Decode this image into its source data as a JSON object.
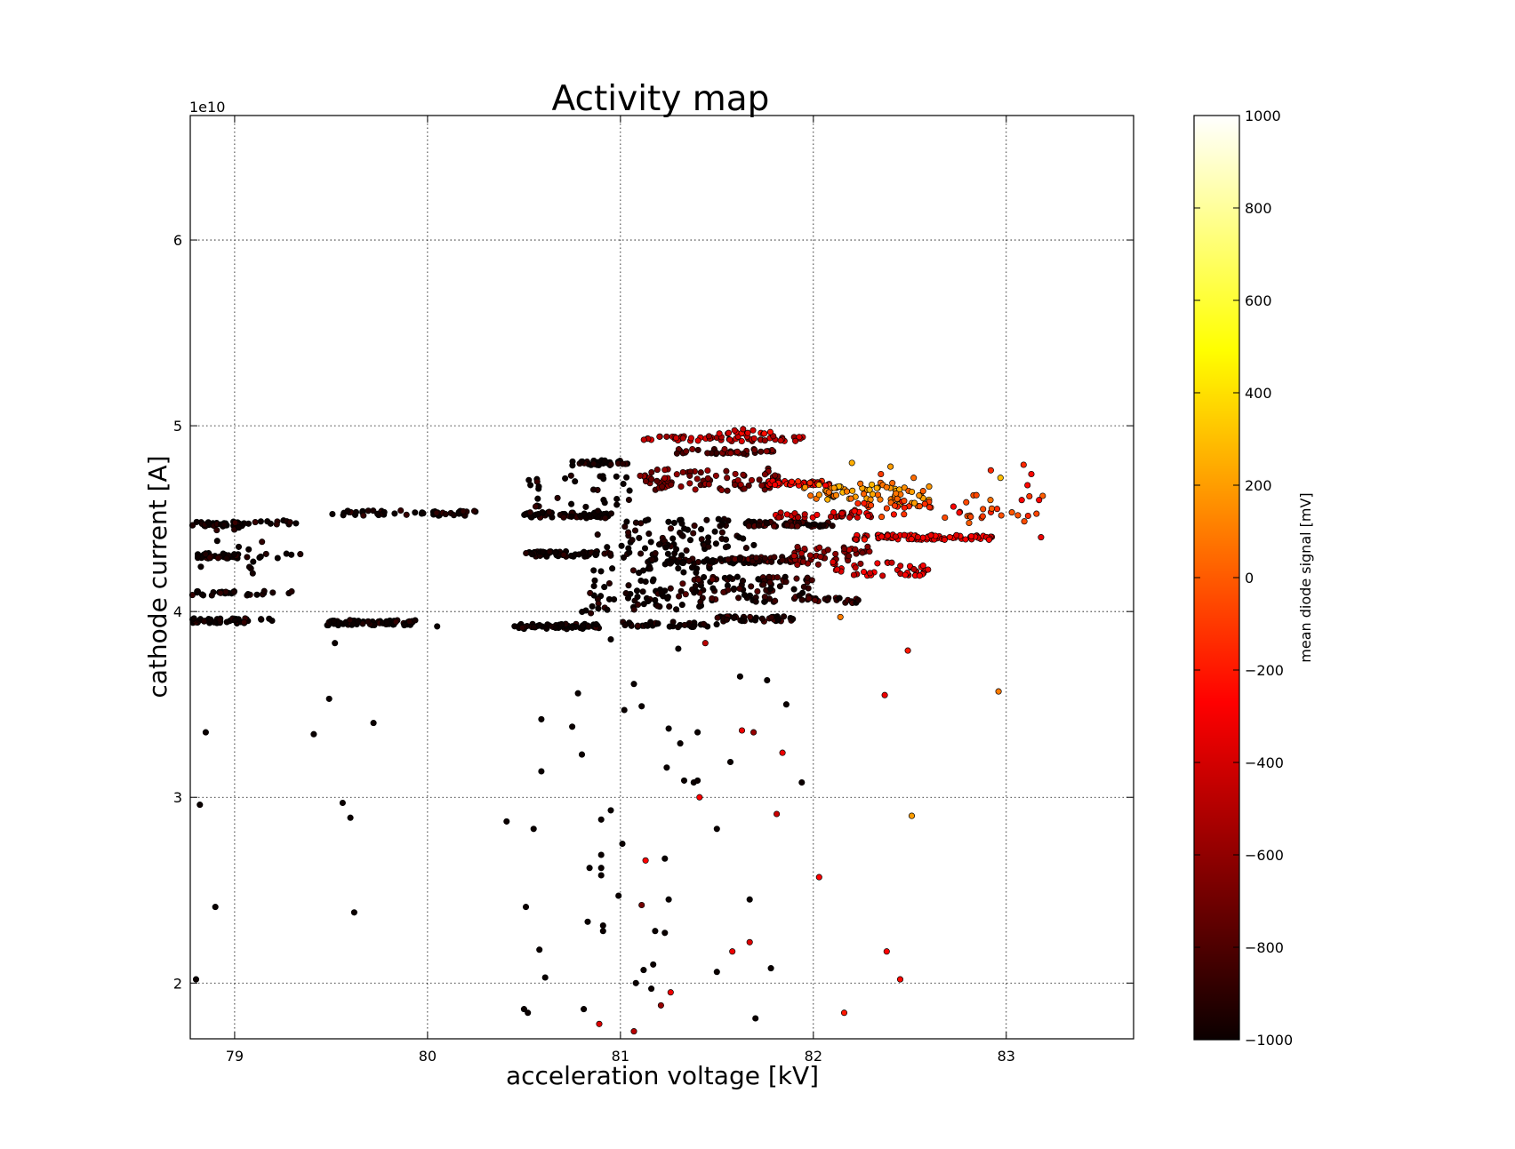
{
  "chart_data": {
    "type": "scatter",
    "title": "Activity map",
    "xlabel": "acceleration voltage [kV]",
    "ylabel": "cathode current [A]",
    "y_offset_text": "1e10",
    "xlim": [
      78.77,
      83.66
    ],
    "ylim": [
      17000000000.0,
      66700000000.0
    ],
    "xticks": [
      79,
      80,
      81,
      82,
      83
    ],
    "xtick_labels": [
      "79",
      "80",
      "81",
      "82",
      "83"
    ],
    "yticks": [
      20000000000.0,
      30000000000.0,
      40000000000.0,
      50000000000.0,
      60000000000.0
    ],
    "ytick_labels": [
      "2",
      "3",
      "4",
      "5",
      "6"
    ],
    "grid": true,
    "colorbar": {
      "label": "mean diode signal [mV]",
      "colormap": "hot",
      "range": [
        -1000,
        1000
      ],
      "ticks": [
        -1000,
        -800,
        -600,
        -400,
        -200,
        0,
        200,
        400,
        600,
        800,
        1000
      ],
      "tick_labels": [
        "−1000",
        "−800",
        "−600",
        "−400",
        "−200",
        "0",
        "200",
        "400",
        "600",
        "800",
        "1000"
      ]
    },
    "clusters": [
      {
        "x": [
          78.78,
          79.05
        ],
        "y": 44700000000.0,
        "n": 40,
        "c": -1000
      },
      {
        "x": [
          79.07,
          79.38
        ],
        "y": 44800000000.0,
        "n": 12,
        "c": -1000
      },
      {
        "x": [
          78.78,
          79.02
        ],
        "y": 43000000000.0,
        "n": 32,
        "c": -1000
      },
      {
        "x": [
          79.05,
          79.4
        ],
        "y": 43000000000.0,
        "n": 8,
        "c": -1000
      },
      {
        "x": [
          78.78,
          79.0
        ],
        "y": 41000000000.0,
        "n": 20,
        "c": -1000
      },
      {
        "x": [
          79.05,
          79.3
        ],
        "y": 41000000000.0,
        "n": 10,
        "c": -1000
      },
      {
        "x": [
          78.78,
          79.08
        ],
        "y": 39500000000.0,
        "n": 40,
        "c": -1000
      },
      {
        "x": [
          79.1,
          79.2
        ],
        "y": 39600000000.0,
        "n": 4,
        "c": -1000
      },
      {
        "x": [
          78.8,
          79.15
        ],
        "y": 43500000000.0,
        "n": 16,
        "c": -1000,
        "spread": 3000000000.0
      },
      {
        "x": [
          79.5,
          80.25
        ],
        "y": 45300000000.0,
        "n": 50,
        "c": -1000
      },
      {
        "x": [
          79.48,
          79.95
        ],
        "y": 39400000000.0,
        "n": 70,
        "c": -1000
      },
      {
        "x": [
          80.45,
          80.9
        ],
        "y": 39200000000.0,
        "n": 60,
        "c": -1000
      },
      {
        "x": [
          80.5,
          80.95
        ],
        "y": 45200000000.0,
        "n": 60,
        "c": -1000
      },
      {
        "x": [
          80.5,
          80.95
        ],
        "y": 43100000000.0,
        "n": 55,
        "c": -1000
      },
      {
        "x": [
          80.75,
          81.05
        ],
        "y": 48000000000.0,
        "n": 35,
        "c": -1000
      },
      {
        "x": [
          80.5,
          81.05
        ],
        "y": 46200000000.0,
        "n": 40,
        "c": -1000,
        "spread": 2400000000.0
      },
      {
        "x": [
          80.85,
          81.5
        ],
        "y": 42200000000.0,
        "n": 80,
        "c": -1000,
        "spread": 4000000000.0
      },
      {
        "x": [
          80.8,
          81.3
        ],
        "y": 40500000000.0,
        "n": 30,
        "c": -1000,
        "spread": 1400000000.0
      },
      {
        "x": [
          81.0,
          81.5
        ],
        "y": 39300000000.0,
        "n": 35,
        "c": -1000
      },
      {
        "x": [
          81.0,
          81.7
        ],
        "y": 44200000000.0,
        "n": 60,
        "c": -1000,
        "spread": 1600000000.0
      },
      {
        "x": [
          81.5,
          81.9
        ],
        "y": 39600000000.0,
        "n": 40,
        "c": -950
      },
      {
        "x": [
          81.1,
          81.7
        ],
        "y": 42700000000.0,
        "n": 60,
        "c": -980
      },
      {
        "x": [
          81.3,
          82.0
        ],
        "y": 41200000000.0,
        "n": 90,
        "c": -900,
        "spread": 1400000000.0
      },
      {
        "x": [
          81.55,
          82.0
        ],
        "y": 42800000000.0,
        "n": 50,
        "c": -850
      },
      {
        "x": [
          81.65,
          82.1
        ],
        "y": 44700000000.0,
        "n": 60,
        "c": -880
      },
      {
        "x": [
          81.1,
          81.85
        ],
        "y": 47100000000.0,
        "n": 80,
        "c": -700,
        "spread": 1200000000.0
      },
      {
        "x": [
          81.25,
          81.8
        ],
        "y": 48600000000.0,
        "n": 35,
        "c": -750
      },
      {
        "x": [
          81.1,
          81.95
        ],
        "y": 49300000000.0,
        "n": 55,
        "c": -500
      },
      {
        "x": [
          81.5,
          81.8
        ],
        "y": 49700000000.0,
        "n": 14,
        "c": -350
      },
      {
        "x": [
          81.75,
          82.1
        ],
        "y": 46900000000.0,
        "n": 45,
        "c": -250
      },
      {
        "x": [
          81.8,
          82.3
        ],
        "y": 45200000000.0,
        "n": 35,
        "c": -450
      },
      {
        "x": [
          81.95,
          82.45
        ],
        "y": 46500000000.0,
        "n": 55,
        "c": 150,
        "spread": 1000000000.0
      },
      {
        "x": [
          82.4,
          82.6
        ],
        "y": 46200000000.0,
        "n": 20,
        "c": 100,
        "spread": 1200000000.0
      },
      {
        "x": [
          81.9,
          82.3
        ],
        "y": 43000000000.0,
        "n": 45,
        "c": -600,
        "spread": 1000000000.0
      },
      {
        "x": [
          82.2,
          82.95
        ],
        "y": 44000000000.0,
        "n": 80,
        "c": -350
      },
      {
        "x": [
          82.1,
          82.6
        ],
        "y": 42300000000.0,
        "n": 40,
        "c": -380,
        "spread": 800000000.0
      },
      {
        "x": [
          82.2,
          82.8
        ],
        "y": 45500000000.0,
        "n": 30,
        "c": -150,
        "spread": 1000000000.0
      },
      {
        "x": [
          82.8,
          83.2
        ],
        "y": 45500000000.0,
        "n": 20,
        "c": -50,
        "spread": 1600000000.0
      },
      {
        "x": [
          81.95,
          82.25
        ],
        "y": 40600000000.0,
        "n": 20,
        "c": -900
      }
    ],
    "points": [
      [
        78.8,
        20200000000.0,
        -1000
      ],
      [
        78.82,
        29600000000.0,
        -1000
      ],
      [
        78.85,
        33500000000.0,
        -1000
      ],
      [
        78.9,
        24100000000.0,
        -1000
      ],
      [
        79.41,
        33400000000.0,
        -1000
      ],
      [
        79.49,
        35300000000.0,
        -1000
      ],
      [
        79.52,
        38300000000.0,
        -1000
      ],
      [
        79.56,
        29700000000.0,
        -1000
      ],
      [
        79.6,
        28900000000.0,
        -1000
      ],
      [
        79.62,
        23800000000.0,
        -1000
      ],
      [
        79.72,
        34000000000.0,
        -1000
      ],
      [
        80.05,
        39200000000.0,
        -1000
      ],
      [
        80.41,
        28700000000.0,
        -1000
      ],
      [
        80.51,
        24100000000.0,
        -1000
      ],
      [
        80.5,
        18600000000.0,
        -1000
      ],
      [
        80.52,
        18400000000.0,
        -1000
      ],
      [
        80.55,
        28300000000.0,
        -1000
      ],
      [
        80.58,
        21800000000.0,
        -1000
      ],
      [
        80.59,
        31400000000.0,
        -1000
      ],
      [
        80.59,
        34200000000.0,
        -1000
      ],
      [
        80.61,
        20300000000.0,
        -1000
      ],
      [
        80.75,
        33800000000.0,
        -1000
      ],
      [
        80.78,
        35600000000.0,
        -1000
      ],
      [
        80.8,
        32300000000.0,
        -1000
      ],
      [
        80.81,
        18600000000.0,
        -1000
      ],
      [
        80.83,
        23300000000.0,
        -1000
      ],
      [
        80.84,
        26200000000.0,
        -1000
      ],
      [
        80.9,
        28800000000.0,
        -1000
      ],
      [
        80.9,
        26200000000.0,
        -1000
      ],
      [
        80.9,
        25800000000.0,
        -1000
      ],
      [
        80.9,
        26900000000.0,
        -1000
      ],
      [
        80.91,
        23100000000.0,
        -1000
      ],
      [
        80.91,
        22800000000.0,
        -1000
      ],
      [
        80.95,
        29300000000.0,
        -1000
      ],
      [
        80.99,
        24700000000.0,
        -1000
      ],
      [
        81.01,
        27500000000.0,
        -1000
      ],
      [
        81.02,
        34700000000.0,
        -1000
      ],
      [
        81.07,
        36100000000.0,
        -1000
      ],
      [
        81.08,
        20000000000.0,
        -1000
      ],
      [
        81.11,
        34900000000.0,
        -1000
      ],
      [
        81.12,
        20700000000.0,
        -1000
      ],
      [
        81.16,
        19700000000.0,
        -1000
      ],
      [
        81.17,
        21000000000.0,
        -1000
      ],
      [
        81.18,
        22800000000.0,
        -1000
      ],
      [
        81.23,
        26700000000.0,
        -1000
      ],
      [
        81.23,
        22700000000.0,
        -1000
      ],
      [
        81.24,
        31600000000.0,
        -1000
      ],
      [
        81.25,
        33700000000.0,
        -1000
      ],
      [
        81.25,
        24500000000.0,
        -1000
      ],
      [
        81.31,
        32900000000.0,
        -1000
      ],
      [
        81.33,
        30900000000.0,
        -1000
      ],
      [
        81.38,
        30800000000.0,
        -1000
      ],
      [
        81.4,
        30900000000.0,
        -1000
      ],
      [
        81.4,
        33500000000.0,
        -1000
      ],
      [
        81.3,
        38000000000.0,
        -1000
      ],
      [
        81.5,
        28300000000.0,
        -1000
      ],
      [
        81.5,
        20600000000.0,
        -1000
      ],
      [
        81.57,
        31900000000.0,
        -1000
      ],
      [
        81.62,
        36500000000.0,
        -1000
      ],
      [
        81.67,
        24500000000.0,
        -1000
      ],
      [
        81.7,
        18100000000.0,
        -1000
      ],
      [
        81.76,
        36300000000.0,
        -1000
      ],
      [
        81.78,
        20800000000.0,
        -1000
      ],
      [
        81.86,
        35000000000.0,
        -1000
      ],
      [
        81.94,
        30800000000.0,
        -1000
      ],
      [
        80.95,
        38500000000.0,
        -1000
      ],
      [
        80.89,
        17800000000.0,
        -400
      ],
      [
        81.07,
        17400000000.0,
        -500
      ],
      [
        81.11,
        24200000000.0,
        -700
      ],
      [
        81.13,
        26600000000.0,
        -300
      ],
      [
        81.21,
        18800000000.0,
        -600
      ],
      [
        81.26,
        19500000000.0,
        -350
      ],
      [
        81.41,
        30000000000.0,
        -300
      ],
      [
        81.44,
        38300000000.0,
        -500
      ],
      [
        81.58,
        21700000000.0,
        -350
      ],
      [
        81.63,
        33600000000.0,
        -350
      ],
      [
        81.67,
        22200000000.0,
        -400
      ],
      [
        81.69,
        33500000000.0,
        -600
      ],
      [
        81.81,
        29100000000.0,
        -450
      ],
      [
        81.84,
        32400000000.0,
        -350
      ],
      [
        82.03,
        25700000000.0,
        -300
      ],
      [
        82.14,
        39700000000.0,
        100
      ],
      [
        82.16,
        18400000000.0,
        -200
      ],
      [
        82.37,
        35500000000.0,
        -350
      ],
      [
        82.38,
        21700000000.0,
        -300
      ],
      [
        82.45,
        20200000000.0,
        -250
      ],
      [
        82.49,
        37900000000.0,
        -200
      ],
      [
        82.51,
        29000000000.0,
        200
      ],
      [
        82.96,
        35700000000.0,
        100
      ],
      [
        82.2,
        48000000000.0,
        250
      ],
      [
        82.4,
        47800000000.0,
        200
      ],
      [
        82.92,
        47600000000.0,
        -150
      ],
      [
        82.97,
        47200000000.0,
        300
      ],
      [
        83.09,
        47900000000.0,
        -150
      ],
      [
        83.11,
        46800000000.0,
        -250
      ],
      [
        83.13,
        47400000000.0,
        -250
      ],
      [
        83.17,
        46000000000.0,
        -300
      ],
      [
        83.18,
        44000000000.0,
        -350
      ],
      [
        83.08,
        46000000000.0,
        -300
      ],
      [
        82.35,
        47400000000.0,
        -100
      ],
      [
        82.52,
        47200000000.0,
        50
      ]
    ]
  }
}
